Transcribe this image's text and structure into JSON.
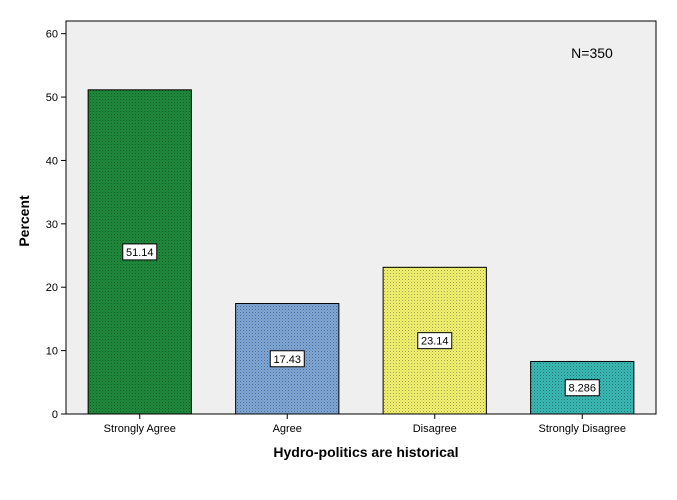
{
  "chart_data": {
    "type": "bar",
    "categories": [
      "Strongly Agree",
      "Agree",
      "Disagree",
      "Strongly Disagree"
    ],
    "values": [
      51.14,
      17.43,
      23.14,
      8.286
    ],
    "data_labels": [
      "51.14",
      "17.43",
      "23.14",
      "8.286"
    ],
    "xlabel": "Hydro-politics are historical",
    "ylabel": "Percent",
    "ylim": [
      0,
      62
    ],
    "yticks": [
      0,
      10,
      20,
      30,
      40,
      50,
      60
    ],
    "annotation": "N=350",
    "grid": false,
    "colors": {
      "plot_background": "#efefef",
      "bars": [
        "#1f8a3c",
        "#7ea6d6",
        "#f2f270",
        "#3ab8b3"
      ]
    }
  }
}
